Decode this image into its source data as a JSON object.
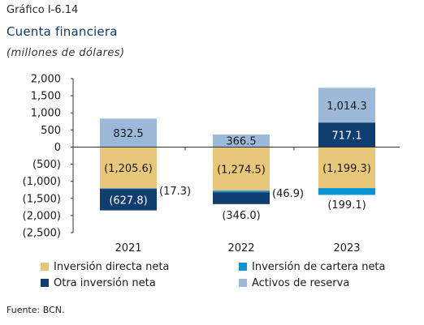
{
  "header": {
    "label": "Gráfico I-6.14",
    "title": "Cuenta financiera",
    "subtitle": "(millones de dólares)"
  },
  "footer": {
    "source": "Fuente: BCN."
  },
  "chart_data": {
    "type": "bar",
    "stacked": true,
    "categories": [
      "2021",
      "2022",
      "2023"
    ],
    "series": [
      {
        "name": "Inversión directa neta",
        "color": "#e8c67a",
        "values": [
          -1205.6,
          -1274.5,
          -1199.3
        ]
      },
      {
        "name": "Inversión de cartera neta",
        "color": "#0a93d2",
        "values": [
          -17.3,
          -46.9,
          -199.1
        ]
      },
      {
        "name": "Otra inversión neta",
        "color": "#103e70",
        "values": [
          -627.8,
          -346.0,
          717.1
        ]
      },
      {
        "name": "Activos de reserva",
        "color": "#9db9d9",
        "values": [
          832.5,
          366.5,
          1014.3
        ]
      }
    ],
    "data_labels": [
      [
        "(1,205.6)",
        "(1,274.5)",
        "(1,199.3)"
      ],
      [
        "(17.3)",
        "(46.9)",
        "(199.1)"
      ],
      [
        "(627.8)",
        "(346.0)",
        "717.1"
      ],
      [
        "832.5",
        "366.5",
        "1,014.3"
      ]
    ],
    "ylim": [
      -2500,
      2000
    ],
    "yticks": [
      2000,
      1500,
      1000,
      500,
      0,
      -500,
      -1000,
      -1500,
      -2000,
      -2500
    ],
    "ytick_labels": [
      "2,000",
      "1,500",
      "1,000",
      "500",
      "0",
      "(500)",
      "(1,000)",
      "(1,500)",
      "(2,000)",
      "(2,500)"
    ],
    "legend": "bottom",
    "grid": false
  }
}
